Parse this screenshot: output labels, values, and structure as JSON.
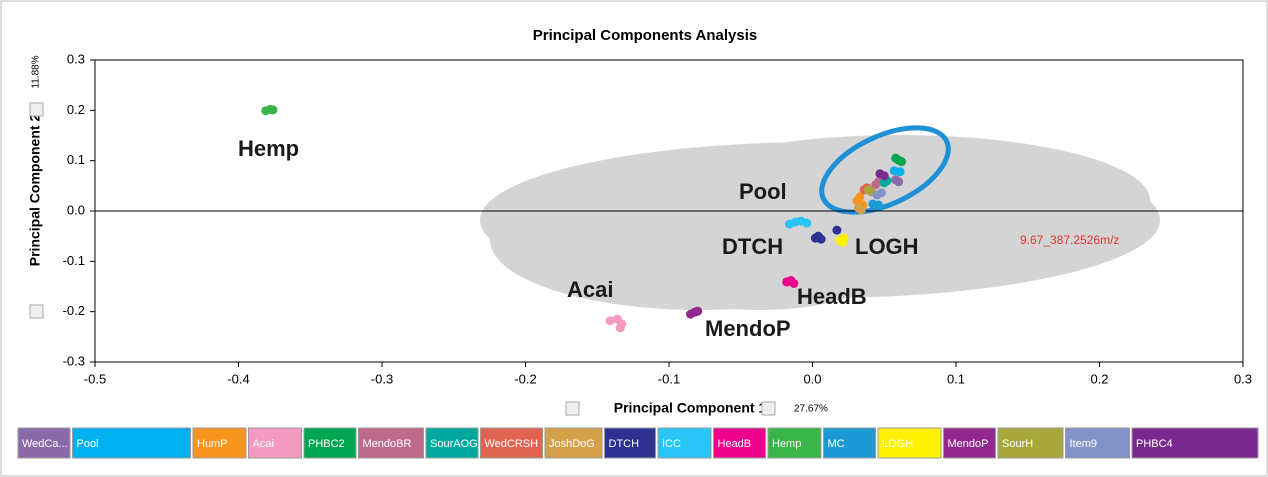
{
  "chart_data": {
    "type": "scatter",
    "title": "Principal Components Analysis",
    "x_label": "Principal Component 1",
    "x_variance": "27.67%",
    "y_label": "Principal Component 2",
    "y_variance": "11.88%",
    "xlim": [
      -0.5,
      0.3
    ],
    "ylim": [
      -0.3,
      0.3
    ],
    "xticks": [
      -0.5,
      -0.4,
      -0.3,
      -0.2,
      -0.1,
      {
        "value": 0,
        "label": "0.0"
      },
      0.1,
      0.2,
      0.3
    ],
    "yticks": [
      -0.3,
      -0.2,
      -0.1,
      {
        "value": 0,
        "label": "0.0"
      },
      0.1,
      0.2,
      0.3
    ],
    "annotations": [
      "Hemp",
      "Pool",
      "DTCH",
      "LOGH",
      "Acai",
      "HeadB",
      "MendoP",
      "9.67_387.2526m/z"
    ],
    "series": [
      {
        "name": "WedCa...",
        "color": "#8a6aa8",
        "x": [
          0.06,
          0.058
        ],
        "y": [
          0.058,
          0.062
        ]
      },
      {
        "name": "Pool",
        "color": "#00b0f0",
        "x": [
          0.061,
          0.057
        ],
        "y": [
          0.078,
          0.08
        ]
      },
      {
        "name": "HumP",
        "color": "#f7941d",
        "x": [
          0.033,
          0.035,
          0.031
        ],
        "y": [
          0.028,
          0.012,
          0.02
        ]
      },
      {
        "name": "Acai",
        "color": "#f49ac1",
        "x": [
          -0.141,
          -0.136,
          -0.133,
          -0.134
        ],
        "y": [
          -0.218,
          -0.215,
          -0.224,
          -0.232
        ]
      },
      {
        "name": "PHBC2",
        "color": "#00a651",
        "x": [
          0.06,
          0.058,
          0.062
        ],
        "y": [
          0.101,
          0.105,
          0.098
        ]
      },
      {
        "name": "MendoBR",
        "color": "#c06a8b",
        "x": [
          0.046,
          0.044
        ],
        "y": [
          0.058,
          0.052
        ]
      },
      {
        "name": "SourAOG",
        "color": "#00a99d",
        "x": [
          0.05,
          0.052
        ],
        "y": [
          0.056,
          0.06
        ]
      },
      {
        "name": "WedCRSH",
        "color": "#e0644f",
        "x": [
          0.038,
          0.036
        ],
        "y": [
          0.046,
          0.042
        ]
      },
      {
        "name": "JoshDoG",
        "color": "#d4a04a",
        "x": [
          0.034,
          0.032
        ],
        "y": [
          0.002,
          0.006
        ]
      },
      {
        "name": "DTCH",
        "color": "#2e3192",
        "x": [
          0.002,
          0.004,
          0.006,
          0.017
        ],
        "y": [
          -0.054,
          -0.05,
          -0.056,
          -0.038
        ]
      },
      {
        "name": "ICC",
        "color": "#29c5f6",
        "x": [
          -0.012,
          -0.008,
          -0.004,
          -0.016
        ],
        "y": [
          -0.022,
          -0.02,
          -0.024,
          -0.026
        ]
      },
      {
        "name": "HeadB",
        "color": "#ec008c",
        "x": [
          -0.018,
          -0.015,
          -0.013
        ],
        "y": [
          -0.141,
          -0.138,
          -0.144
        ]
      },
      {
        "name": "Hemp",
        "color": "#39b54a",
        "x": [
          -0.381,
          -0.378,
          -0.376
        ],
        "y": [
          0.199,
          0.202,
          0.201
        ]
      },
      {
        "name": "MC",
        "color": "#1c9ad6",
        "x": [
          0.042,
          0.046
        ],
        "y": [
          0.014,
          0.012
        ]
      },
      {
        "name": "LOGH",
        "color": "#fff200",
        "x": [
          0.019,
          0.022,
          0.021
        ],
        "y": [
          -0.058,
          -0.054,
          -0.062
        ]
      },
      {
        "name": "MendoP",
        "color": "#92278f",
        "x": [
          -0.085,
          -0.082,
          -0.08
        ],
        "y": [
          -0.205,
          -0.201,
          -0.199
        ]
      },
      {
        "name": "SourH",
        "color": "#a8a83a",
        "x": [
          0.039,
          0.041
        ],
        "y": [
          0.042,
          0.038
        ]
      },
      {
        "name": "Item9",
        "color": "#8393ca",
        "x": [
          0.045,
          0.048
        ],
        "y": [
          0.032,
          0.036
        ]
      },
      {
        "name": "PHBC4",
        "color": "#7a2a8e",
        "x": [
          0.047,
          0.05
        ],
        "y": [
          0.074,
          0.07
        ]
      }
    ]
  }
}
